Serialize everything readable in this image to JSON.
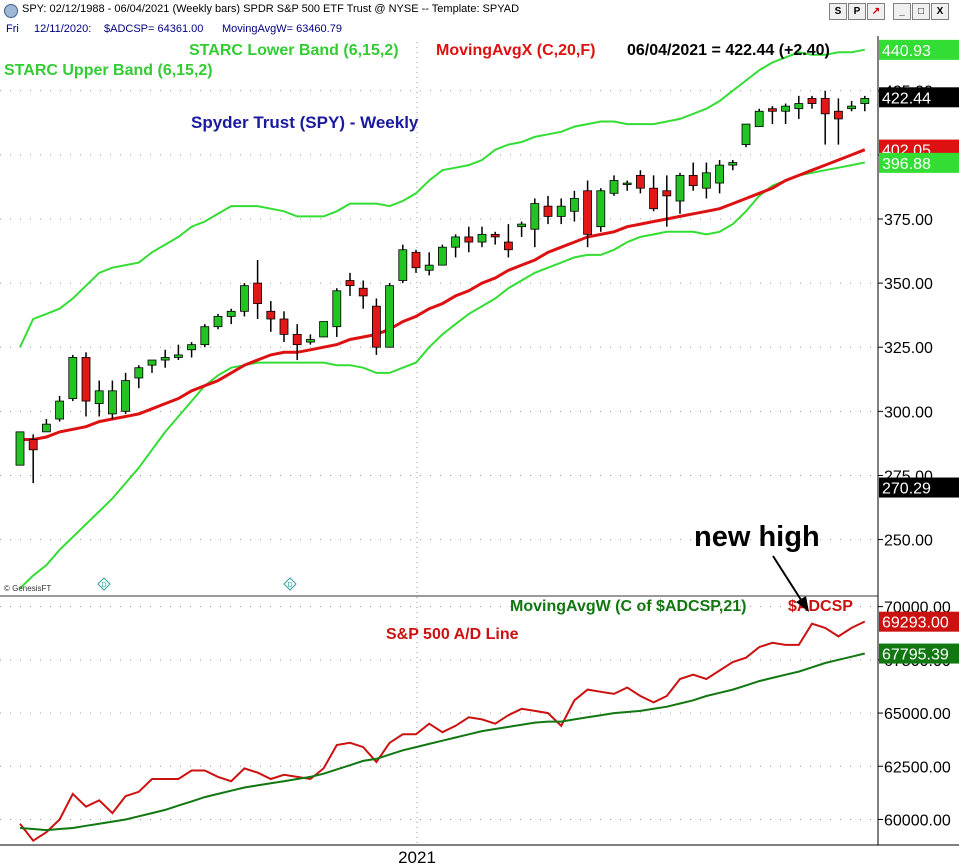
{
  "window": {
    "title": "SPY:  02/12/1988 - 06/04/2021  (Weekly bars)   SPDR S&P 500 ETF Trust @ NYSE  --  Template: SPYAD",
    "buttons": [
      "S",
      "P",
      "↗",
      "_",
      "□",
      "X"
    ]
  },
  "infobar": {
    "day": "Fri",
    "date": "12/11/2020:",
    "adcsp": "$ADCSP= 64361.00",
    "ma": "MovingAvgW= 63460.79"
  },
  "colors": {
    "up_candle": "#22c322",
    "down_candle": "#e01818",
    "starc": "#33dd33",
    "ma_price": "#dd1111",
    "ad_line": "#cc1111",
    "ad_ma": "#117711",
    "title_blue": "#1a1aa0"
  },
  "chart_data": [
    {
      "type": "candlestick",
      "title": "Spyder Trust (SPY) - Weekly",
      "watermark": "© GenesisFT",
      "legend": {
        "starc_upper": "STARC Upper Band (6,15,2)",
        "starc_lower": "STARC Lower Band (6,15,2)",
        "moving_avg": "MovingAvgX (C,20,F)",
        "last": "06/04/2021 = 422.44 (+2.40)"
      },
      "ylim": [
        228,
        444
      ],
      "yticks": [
        "250.00",
        "275.00",
        "300.00",
        "325.00",
        "350.00",
        "375.00",
        "400.00",
        "425.00"
      ],
      "price_tags": [
        {
          "value": 440.93,
          "label": "440.93",
          "kind": "starc"
        },
        {
          "value": 422.44,
          "label": "422.44",
          "kind": "last"
        },
        {
          "value": 402.05,
          "label": "402.05",
          "kind": "ma"
        },
        {
          "value": 396.88,
          "label": "396.88",
          "kind": "starc"
        },
        {
          "value": 270.29,
          "label": "270.29",
          "kind": "last"
        }
      ],
      "x_label": "2021",
      "x_label_index": 30,
      "annotation": "new high",
      "candles": [
        [
          279,
          292,
          279,
          292
        ],
        [
          289,
          291,
          272,
          285
        ],
        [
          292,
          297,
          292,
          295
        ],
        [
          297,
          306,
          296,
          304
        ],
        [
          305,
          322,
          304,
          321
        ],
        [
          321,
          323,
          298,
          304
        ],
        [
          303,
          312,
          298,
          308
        ],
        [
          299,
          312,
          297,
          308
        ],
        [
          300,
          315,
          299,
          312
        ],
        [
          313,
          318,
          309,
          317
        ],
        [
          318,
          320,
          315,
          320
        ],
        [
          320,
          324,
          317,
          321
        ],
        [
          321,
          326,
          320,
          322
        ],
        [
          324,
          327,
          321,
          326
        ],
        [
          326,
          334,
          325,
          333
        ],
        [
          333,
          338,
          332,
          337
        ],
        [
          337,
          340,
          334,
          339
        ],
        [
          339,
          350,
          337,
          349
        ],
        [
          350,
          359,
          336,
          342
        ],
        [
          339,
          343,
          331,
          336
        ],
        [
          336,
          339,
          327,
          330
        ],
        [
          330,
          334,
          320,
          326
        ],
        [
          327,
          330,
          326,
          328
        ],
        [
          329,
          335,
          329,
          335
        ],
        [
          333,
          348,
          329,
          347
        ],
        [
          351,
          354,
          345,
          349
        ],
        [
          348,
          351,
          340,
          345
        ],
        [
          341,
          344,
          322,
          325
        ],
        [
          325,
          350,
          325,
          349
        ],
        [
          351,
          365,
          350,
          363
        ],
        [
          362,
          363,
          354,
          356
        ],
        [
          355,
          362,
          353,
          357
        ],
        [
          357,
          365,
          357,
          364
        ],
        [
          364,
          369,
          360,
          368
        ],
        [
          368,
          372,
          362,
          366
        ],
        [
          366,
          372,
          364,
          369
        ],
        [
          369,
          370,
          365,
          368
        ],
        [
          366,
          373,
          360,
          363
        ],
        [
          372,
          374,
          368,
          373
        ],
        [
          371,
          383,
          364,
          381
        ],
        [
          380,
          384,
          373,
          376
        ],
        [
          376,
          383,
          373,
          380
        ],
        [
          378,
          386,
          374,
          383
        ],
        [
          386,
          390,
          364,
          369
        ],
        [
          372,
          387,
          370,
          386
        ],
        [
          385,
          392,
          384,
          390
        ],
        [
          389,
          390,
          386,
          389
        ],
        [
          392,
          394,
          385,
          387
        ],
        [
          387,
          392,
          378,
          379
        ],
        [
          386,
          392,
          372,
          384
        ],
        [
          382,
          393,
          377,
          392
        ],
        [
          392,
          397,
          386,
          388
        ],
        [
          387,
          397,
          383,
          393
        ],
        [
          389,
          398,
          385,
          396
        ],
        [
          396,
          398,
          394,
          397
        ],
        [
          404,
          411,
          403,
          412
        ],
        [
          411,
          418,
          411,
          417
        ],
        [
          418,
          419,
          412,
          417
        ],
        [
          417,
          420,
          412,
          419
        ],
        [
          418,
          423,
          414,
          420
        ],
        [
          422,
          423,
          418,
          420
        ],
        [
          422,
          425,
          404,
          416
        ],
        [
          417,
          422,
          404,
          414
        ],
        [
          418,
          421,
          417,
          419
        ],
        [
          420,
          423,
          417,
          422
        ]
      ],
      "series": [
        {
          "name": "STARC Upper Band (6,15,2)",
          "values": [
            325,
            336,
            338,
            340,
            344,
            349,
            354,
            356,
            357,
            358,
            362,
            365,
            368,
            372,
            374,
            377,
            380,
            380,
            380,
            379,
            378,
            376,
            376,
            376,
            378,
            381,
            381,
            381,
            380,
            382,
            385,
            390,
            394,
            395,
            396,
            398,
            402,
            404,
            405,
            407,
            408,
            409,
            411,
            412,
            413,
            413,
            412,
            412,
            412,
            413,
            414,
            416,
            418,
            421,
            425,
            429,
            433,
            436,
            438,
            440,
            439,
            439,
            440,
            440,
            441
          ]
        },
        {
          "name": "STARC Lower Band (6,15,2)",
          "values": [
            231,
            236,
            240,
            246,
            251,
            256,
            261,
            266,
            272,
            278,
            285,
            292,
            298,
            304,
            310,
            314,
            317,
            318,
            319,
            319,
            319,
            319,
            319,
            319,
            318,
            318,
            317,
            315,
            315,
            317,
            319,
            325,
            330,
            334,
            338,
            341,
            344,
            348,
            351,
            354,
            356,
            358,
            360,
            361,
            361,
            363,
            366,
            368,
            369,
            370,
            370,
            370,
            369,
            370,
            373,
            378,
            384,
            388,
            390,
            392,
            393,
            394,
            395,
            396,
            397
          ]
        },
        {
          "name": "MovingAvgX (C,20,F)",
          "values": [
            289,
            289,
            290,
            292,
            293,
            294,
            296,
            297,
            298,
            299,
            301,
            303,
            305,
            308,
            310,
            312,
            315,
            318,
            320,
            322,
            323,
            323,
            324,
            325,
            326,
            328,
            329,
            330,
            332,
            335,
            337,
            340,
            342,
            345,
            347,
            350,
            352,
            355,
            357,
            359,
            362,
            364,
            366,
            368,
            369,
            370,
            372,
            373,
            374,
            375,
            376,
            377,
            378,
            379,
            381,
            383,
            385,
            387,
            390,
            392,
            394,
            396,
            398,
            400,
            402
          ]
        }
      ]
    },
    {
      "type": "line",
      "title": "S&P 500 A/D Line",
      "legend": {
        "ma": "MovingAvgW (C of $ADCSP,21)",
        "symbol": "$ADCSP"
      },
      "ylim": [
        58800,
        70500
      ],
      "yticks": [
        "60000.00",
        "62500.00",
        "65000.00",
        "67500.00",
        "70000.00"
      ],
      "price_tags": [
        {
          "value": 69293.0,
          "label": "69293.00",
          "kind": "ad"
        },
        {
          "value": 67795.39,
          "label": "67795.39",
          "kind": "admavg"
        }
      ],
      "series": [
        {
          "name": "$ADCSP",
          "values": [
            59800,
            59000,
            59400,
            60000,
            61200,
            60600,
            60900,
            60300,
            61100,
            61300,
            61900,
            61900,
            61900,
            62300,
            62300,
            62000,
            61800,
            62400,
            62200,
            61900,
            62100,
            62000,
            61900,
            62400,
            63500,
            63600,
            63400,
            62700,
            63600,
            64000,
            64000,
            64500,
            64100,
            64400,
            64800,
            64700,
            64500,
            64900,
            65200,
            65100,
            65000,
            64400,
            65600,
            66100,
            66000,
            65900,
            66200,
            65800,
            65500,
            65800,
            66600,
            66800,
            66600,
            67000,
            67400,
            67600,
            68100,
            68300,
            68200,
            68200,
            69200,
            69000,
            68600,
            69000,
            69300
          ]
        },
        {
          "name": "MovingAvgW (C of $ADCSP,21)",
          "values": [
            59600,
            59550,
            59500,
            59550,
            59600,
            59700,
            59800,
            59900,
            60000,
            60150,
            60300,
            60450,
            60650,
            60850,
            61050,
            61200,
            61350,
            61500,
            61600,
            61700,
            61800,
            61900,
            62000,
            62150,
            62350,
            62550,
            62750,
            62850,
            63050,
            63250,
            63400,
            63550,
            63700,
            63850,
            64000,
            64150,
            64250,
            64350,
            64450,
            64550,
            64600,
            64600,
            64700,
            64800,
            64900,
            65000,
            65050,
            65100,
            65200,
            65300,
            65450,
            65600,
            65800,
            65950,
            66100,
            66300,
            66500,
            66650,
            66800,
            66950,
            67150,
            67350,
            67500,
            67650,
            67800
          ]
        }
      ]
    }
  ]
}
